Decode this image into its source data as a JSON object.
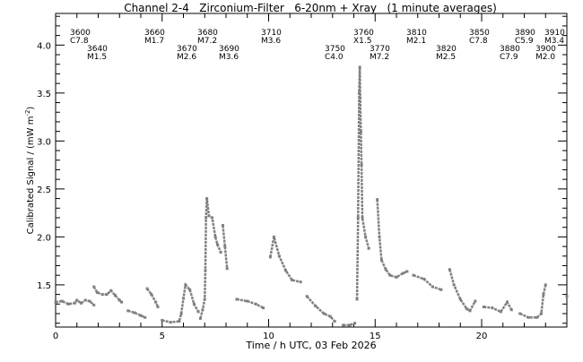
{
  "chart_data": {
    "type": "scatter",
    "title": "Channel 2-4   Zirconium-Filter   6-20nm + Xray   (1 minute averages)",
    "xlabel": "Time / h UTC, 03 Feb 2026",
    "ylabel": "Calibrated Signal / (mW m",
    "ylabel_sup": "-2",
    "ylabel_end": ")",
    "xlim": [
      0,
      24
    ],
    "ylim": [
      1.06,
      4.33
    ],
    "xticks": [
      0,
      5,
      10,
      15,
      20
    ],
    "xtick_labels": [
      "0",
      "5",
      "10",
      "15",
      "20"
    ],
    "yticks": [
      1.5,
      2.0,
      2.5,
      3.0,
      3.5,
      4.0
    ],
    "ytick_labels": [
      "1.5",
      "2.0",
      "2.5",
      "3.0",
      "3.5",
      "4.0"
    ],
    "grid": false,
    "color": "#808080",
    "segments": [
      [
        [
          0.0,
          1.32
        ],
        [
          0.3,
          1.33
        ],
        [
          0.6,
          1.3
        ],
        [
          0.9,
          1.31
        ],
        [
          1.0,
          1.34
        ],
        [
          1.2,
          1.31
        ],
        [
          1.4,
          1.34
        ],
        [
          1.6,
          1.33
        ],
        [
          1.8,
          1.29
        ]
      ],
      [
        [
          1.8,
          1.48
        ],
        [
          1.95,
          1.42
        ],
        [
          2.2,
          1.4
        ],
        [
          2.4,
          1.4
        ],
        [
          2.6,
          1.44
        ],
        [
          2.8,
          1.39
        ],
        [
          3.0,
          1.34
        ],
        [
          3.1,
          1.32
        ]
      ],
      [
        [
          3.4,
          1.23
        ],
        [
          3.7,
          1.21
        ],
        [
          4.0,
          1.18
        ],
        [
          4.2,
          1.16
        ]
      ],
      [
        [
          4.3,
          1.46
        ],
        [
          4.5,
          1.4
        ],
        [
          4.7,
          1.32
        ],
        [
          4.8,
          1.27
        ]
      ],
      [
        [
          5.0,
          1.13
        ],
        [
          5.4,
          1.11
        ],
        [
          5.8,
          1.12
        ],
        [
          5.9,
          1.2
        ],
        [
          6.0,
          1.36
        ],
        [
          6.1,
          1.5
        ],
        [
          6.3,
          1.45
        ],
        [
          6.5,
          1.3
        ],
        [
          6.7,
          1.22
        ]
      ],
      [
        [
          6.8,
          1.15
        ],
        [
          6.9,
          1.24
        ],
        [
          7.0,
          1.35
        ],
        [
          7.03,
          1.65
        ],
        [
          7.06,
          2.2
        ],
        [
          7.1,
          2.4
        ],
        [
          7.2,
          2.22
        ],
        [
          7.35,
          2.2
        ],
        [
          7.5,
          2.0
        ],
        [
          7.6,
          1.92
        ],
        [
          7.75,
          1.84
        ]
      ],
      [
        [
          7.85,
          2.12
        ],
        [
          7.95,
          1.9
        ],
        [
          8.05,
          1.67
        ]
      ],
      [
        [
          8.5,
          1.35
        ],
        [
          9.0,
          1.33
        ],
        [
          9.4,
          1.3
        ],
        [
          9.75,
          1.26
        ]
      ],
      [
        [
          10.08,
          1.79
        ],
        [
          10.25,
          2.0
        ],
        [
          10.5,
          1.8
        ],
        [
          10.8,
          1.65
        ],
        [
          11.1,
          1.55
        ],
        [
          11.5,
          1.53
        ]
      ],
      [
        [
          11.8,
          1.38
        ],
        [
          12.2,
          1.28
        ],
        [
          12.6,
          1.2
        ],
        [
          12.9,
          1.17
        ],
        [
          13.1,
          1.12
        ]
      ],
      [
        [
          13.5,
          1.08
        ],
        [
          13.8,
          1.08
        ],
        [
          14.05,
          1.1
        ]
      ],
      [
        [
          14.15,
          1.35
        ],
        [
          14.2,
          2.2
        ],
        [
          14.25,
          3.5
        ],
        [
          14.28,
          3.77
        ],
        [
          14.3,
          3.45
        ],
        [
          14.33,
          3.1
        ],
        [
          14.36,
          2.75
        ],
        [
          14.4,
          2.2
        ],
        [
          14.55,
          2.0
        ],
        [
          14.7,
          1.88
        ]
      ],
      [
        [
          15.1,
          2.39
        ],
        [
          15.2,
          2.0
        ],
        [
          15.3,
          1.76
        ],
        [
          15.5,
          1.66
        ],
        [
          15.7,
          1.6
        ],
        [
          16.0,
          1.58
        ],
        [
          16.3,
          1.62
        ],
        [
          16.5,
          1.64
        ]
      ],
      [
        [
          16.8,
          1.6
        ],
        [
          17.3,
          1.56
        ],
        [
          17.7,
          1.48
        ],
        [
          18.1,
          1.45
        ]
      ],
      [
        [
          18.5,
          1.66
        ],
        [
          18.7,
          1.5
        ],
        [
          19.0,
          1.35
        ],
        [
          19.3,
          1.25
        ],
        [
          19.45,
          1.23
        ],
        [
          19.7,
          1.33
        ]
      ],
      [
        [
          20.1,
          1.27
        ],
        [
          20.5,
          1.26
        ],
        [
          20.9,
          1.22
        ],
        [
          21.2,
          1.32
        ],
        [
          21.4,
          1.24
        ]
      ],
      [
        [
          21.8,
          1.2
        ],
        [
          22.2,
          1.16
        ],
        [
          22.6,
          1.16
        ],
        [
          22.8,
          1.2
        ],
        [
          22.9,
          1.4
        ],
        [
          23.0,
          1.5
        ]
      ],
      [
        [
          24.0,
          1.38
        ]
      ]
    ],
    "annotations": [
      {
        "id": "3600",
        "class": "C7.8"
      },
      {
        "id": "3640",
        "class": "M1.5"
      },
      {
        "id": "3660",
        "class": "M1.7"
      },
      {
        "id": "3670",
        "class": "M2.6"
      },
      {
        "id": "3680",
        "class": "M7.2"
      },
      {
        "id": "3690",
        "class": "M3.6"
      },
      {
        "id": "3710",
        "class": "M3.6"
      },
      {
        "id": "3750",
        "class": "C4.0"
      },
      {
        "id": "3760",
        "class": "X1.5"
      },
      {
        "id": "3770",
        "class": "M7.2"
      },
      {
        "id": "3810",
        "class": "M2.1"
      },
      {
        "id": "3820",
        "class": "M2.5"
      },
      {
        "id": "3850",
        "class": "C7.8"
      },
      {
        "id": "3880",
        "class": "C7.9"
      },
      {
        "id": "3890",
        "class": "C5.9"
      },
      {
        "id": "3900",
        "class": "M2.0"
      },
      {
        "id": "3910",
        "class": "M3.4"
      }
    ]
  }
}
